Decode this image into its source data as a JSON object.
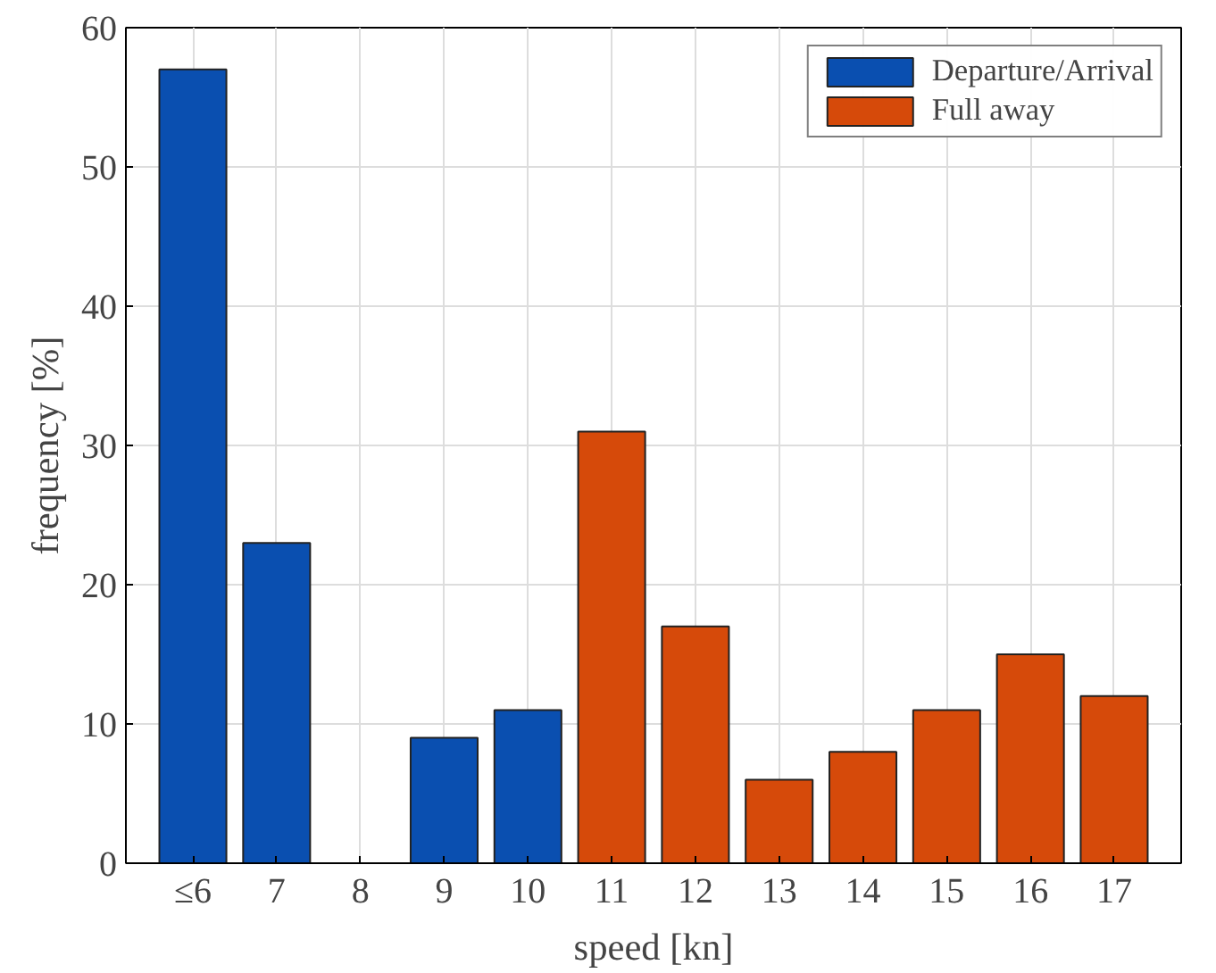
{
  "chart_data": {
    "type": "bar",
    "xlabel": "speed [kn]",
    "ylabel": "frequency [%]",
    "categories": [
      "≤6",
      "7",
      "8",
      "9",
      "10",
      "11",
      "12",
      "13",
      "14",
      "15",
      "16",
      "17"
    ],
    "series": [
      {
        "name": "Departure/Arrival",
        "color": "#0a4fb0",
        "values": [
          57,
          23,
          null,
          9,
          11,
          null,
          null,
          null,
          null,
          null,
          null,
          null
        ]
      },
      {
        "name": "Full away",
        "color": "#d64a0a",
        "values": [
          null,
          null,
          null,
          null,
          null,
          31,
          17,
          6,
          8,
          11,
          15,
          12
        ]
      }
    ],
    "ylim": [
      0,
      60
    ],
    "yticks": [
      0,
      10,
      20,
      30,
      40,
      50,
      60
    ],
    "grid": true,
    "legend": "top right"
  }
}
